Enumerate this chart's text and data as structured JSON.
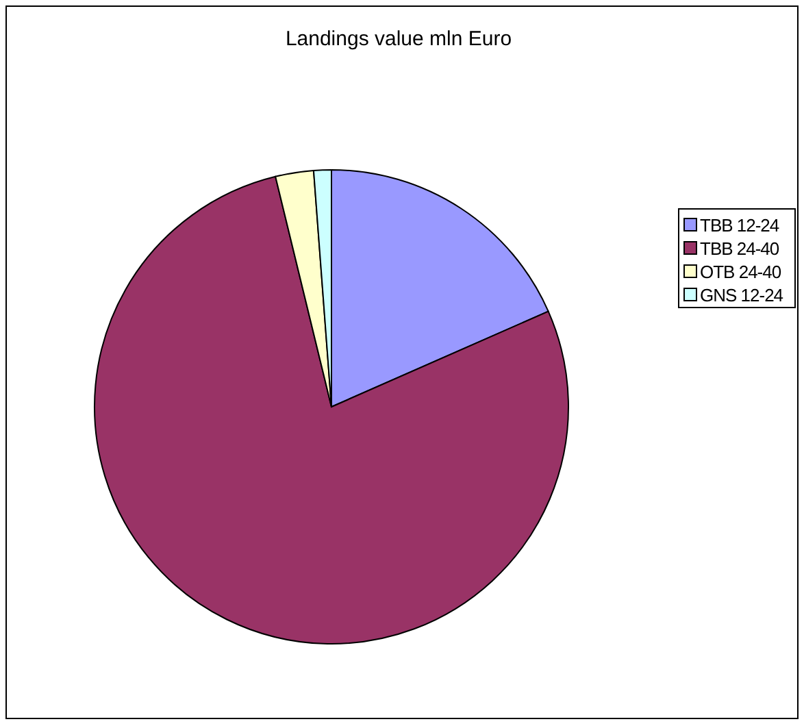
{
  "chart_data": {
    "type": "pie",
    "title": "Landings value mln Euro",
    "categories": [
      "TBB 12-24",
      "TBB 24-40",
      "OTB 24-40",
      "GNS 12-24"
    ],
    "values": [
      18.4,
      77.8,
      2.6,
      1.2
    ],
    "colors": [
      "#9999ff",
      "#993366",
      "#ffffcc",
      "#ccffff"
    ],
    "legend": "right"
  }
}
